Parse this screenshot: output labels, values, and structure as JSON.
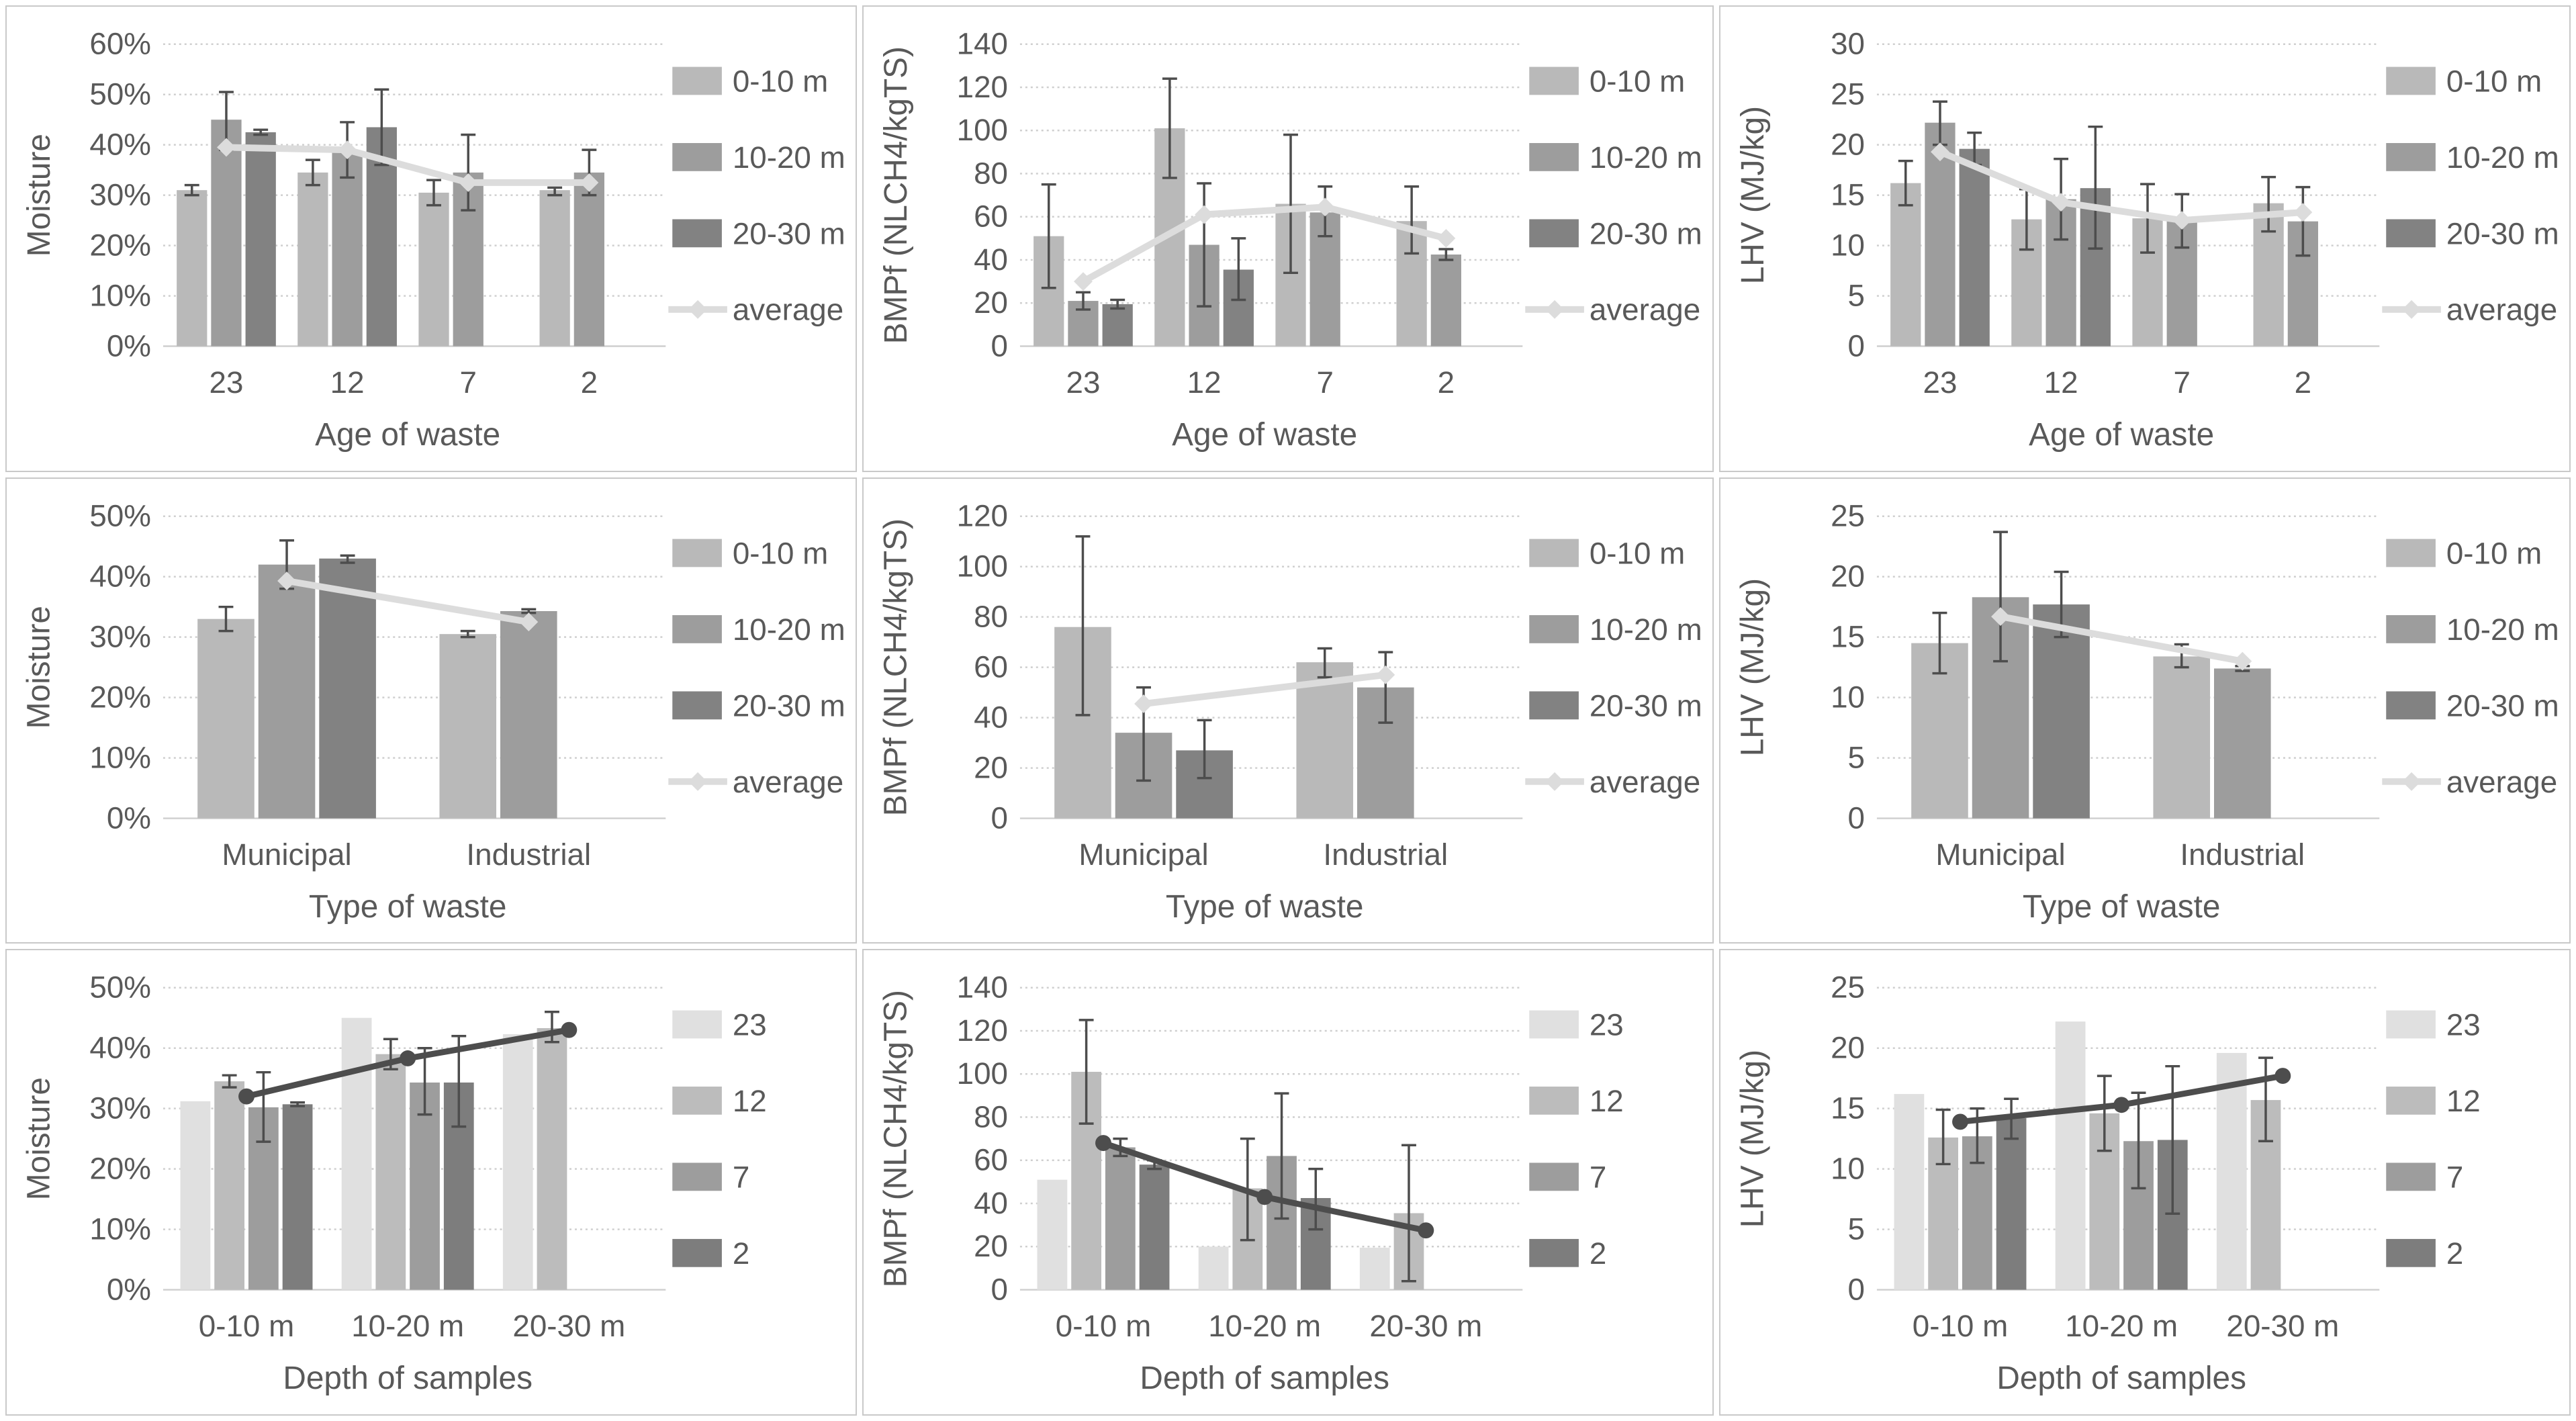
{
  "page": {
    "background": "#ffffff",
    "panel_border": "#c9c9c9",
    "text_color": "#595959",
    "gridline_color": "#cfcfcf",
    "error_bar_color": "#4d4d4d"
  },
  "chart_data": [
    {
      "name": "moisture-by-age",
      "type": "bar",
      "title": "",
      "ylabel": "Moisture",
      "xlabel": "Age of waste",
      "y_min": 0,
      "y_max": 60,
      "y_step": 10,
      "y_suffix": "%",
      "grid": true,
      "legend_position": "right",
      "categories": [
        "23",
        "12",
        "7",
        "2"
      ],
      "series": [
        {
          "name": "0-10 m",
          "color": "#b9b9b9",
          "values": [
            31,
            34.5,
            30.5,
            31
          ],
          "errors": [
            [
              30,
              32
            ],
            [
              32,
              37
            ],
            [
              28,
              33
            ],
            [
              30,
              31.5
            ]
          ]
        },
        {
          "name": "10-20 m",
          "color": "#9d9d9d",
          "values": [
            45,
            38.5,
            34.5,
            34.5
          ],
          "errors": [
            [
              39,
              50.5
            ],
            [
              33.5,
              44.5
            ],
            [
              27,
              42
            ],
            [
              30,
              39
            ]
          ]
        },
        {
          "name": "20-30 m",
          "color": "#828282",
          "values": [
            42.5,
            43.5,
            null,
            null
          ],
          "errors": [
            [
              42,
              43
            ],
            [
              36,
              51
            ],
            null,
            null
          ]
        }
      ],
      "line": {
        "name": "average",
        "color": "#dcdcdc",
        "marker": "diamond",
        "width": 10,
        "show_in_legend": true,
        "values": [
          39.5,
          39,
          32.5,
          32.5
        ]
      }
    },
    {
      "name": "bmpf-by-age",
      "type": "bar",
      "title": "",
      "ylabel": "BMPf (NLCH4/kgTS)",
      "xlabel": "Age of waste",
      "y_min": 0,
      "y_max": 140,
      "y_step": 20,
      "y_suffix": "",
      "grid": true,
      "legend_position": "right",
      "categories": [
        "23",
        "12",
        "7",
        "2"
      ],
      "series": [
        {
          "name": "0-10 m",
          "color": "#b9b9b9",
          "values": [
            51,
            101,
            66,
            58
          ],
          "errors": [
            [
              27,
              75
            ],
            [
              78,
              124
            ],
            [
              34,
              98
            ],
            [
              43,
              74
            ]
          ]
        },
        {
          "name": "10-20 m",
          "color": "#9d9d9d",
          "values": [
            21,
            47,
            62,
            42.5
          ],
          "errors": [
            [
              17,
              25
            ],
            [
              18.5,
              75.5
            ],
            [
              51,
              74
            ],
            [
              40,
              45
            ]
          ]
        },
        {
          "name": "20-30 m",
          "color": "#828282",
          "values": [
            19.5,
            35.5,
            null,
            null
          ],
          "errors": [
            [
              17.5,
              21.5
            ],
            [
              21.5,
              50
            ],
            null,
            null
          ]
        }
      ],
      "line": {
        "name": "average",
        "color": "#dcdcdc",
        "marker": "diamond",
        "width": 10,
        "show_in_legend": true,
        "values": [
          30,
          61,
          64.5,
          50
        ]
      }
    },
    {
      "name": "lhv-by-age",
      "type": "bar",
      "title": "",
      "ylabel": "LHV (MJ/kg)",
      "xlabel": "Age of waste",
      "y_min": 0,
      "y_max": 30,
      "y_step": 5,
      "y_suffix": "",
      "grid": true,
      "legend_position": "right",
      "categories": [
        "23",
        "12",
        "7",
        "2"
      ],
      "series": [
        {
          "name": "0-10 m",
          "color": "#b9b9b9",
          "values": [
            16.2,
            12.6,
            12.7,
            14.2
          ],
          "errors": [
            [
              14,
              18.4
            ],
            [
              9.6,
              15.6
            ],
            [
              9.3,
              16.1
            ],
            [
              11.4,
              16.8
            ]
          ]
        },
        {
          "name": "10-20 m",
          "color": "#9d9d9d",
          "values": [
            22.2,
            14.6,
            12.5,
            12.4
          ],
          "errors": [
            [
              20,
              24.3
            ],
            [
              10.6,
              18.6
            ],
            [
              9.8,
              15.1
            ],
            [
              9,
              15.8
            ]
          ]
        },
        {
          "name": "20-30 m",
          "color": "#828282",
          "values": [
            19.6,
            15.7,
            null,
            null
          ],
          "errors": [
            [
              18,
              21.2
            ],
            [
              9.7,
              21.8
            ],
            null,
            null
          ]
        }
      ],
      "line": {
        "name": "average",
        "color": "#dcdcdc",
        "marker": "diamond",
        "width": 10,
        "show_in_legend": true,
        "values": [
          19.3,
          14.3,
          12.5,
          13.3
        ]
      }
    },
    {
      "name": "moisture-by-type",
      "type": "bar",
      "title": "",
      "ylabel": "Moisture",
      "xlabel": "Type of waste",
      "y_min": 0,
      "y_max": 50,
      "y_step": 10,
      "y_suffix": "%",
      "grid": true,
      "legend_position": "right",
      "categories": [
        "Municipal",
        "Industrial"
      ],
      "series": [
        {
          "name": "0-10 m",
          "color": "#b9b9b9",
          "values": [
            33,
            30.5
          ],
          "errors": [
            [
              31,
              35
            ],
            [
              30,
              31
            ]
          ]
        },
        {
          "name": "10-20 m",
          "color": "#9d9d9d",
          "values": [
            42,
            34.3
          ],
          "errors": [
            [
              38,
              46
            ],
            [
              34,
              34.6
            ]
          ]
        },
        {
          "name": "20-30 m",
          "color": "#828282",
          "values": [
            43,
            null
          ],
          "errors": [
            [
              42.3,
              43.5
            ],
            null
          ]
        }
      ],
      "line": {
        "name": "average",
        "color": "#dcdcdc",
        "marker": "diamond",
        "width": 10,
        "show_in_legend": true,
        "values": [
          39.3,
          32.5
        ]
      }
    },
    {
      "name": "bmpf-by-type",
      "type": "bar",
      "title": "",
      "ylabel": "BMPf (NLCH4/kgTS)",
      "xlabel": "Type of waste",
      "y_min": 0,
      "y_max": 120,
      "y_step": 20,
      "y_suffix": "",
      "grid": true,
      "legend_position": "right",
      "categories": [
        "Municipal",
        "Industrial"
      ],
      "series": [
        {
          "name": "0-10 m",
          "color": "#b9b9b9",
          "values": [
            76,
            62
          ],
          "errors": [
            [
              41,
              112
            ],
            [
              56,
              67.5
            ]
          ]
        },
        {
          "name": "10-20 m",
          "color": "#9d9d9d",
          "values": [
            34,
            52
          ],
          "errors": [
            [
              15,
              52
            ],
            [
              38,
              66
            ]
          ]
        },
        {
          "name": "20-30 m",
          "color": "#828282",
          "values": [
            27,
            null
          ],
          "errors": [
            [
              16,
              39
            ],
            null
          ]
        }
      ],
      "line": {
        "name": "average",
        "color": "#dcdcdc",
        "marker": "diamond",
        "width": 10,
        "show_in_legend": true,
        "values": [
          45.5,
          57
        ]
      }
    },
    {
      "name": "lhv-by-type",
      "type": "bar",
      "title": "",
      "ylabel": "LHV (MJ/kg)",
      "xlabel": "Type of waste",
      "y_min": 0,
      "y_max": 25,
      "y_step": 5,
      "y_suffix": "",
      "grid": true,
      "legend_position": "right",
      "categories": [
        "Municipal",
        "Industrial"
      ],
      "series": [
        {
          "name": "0-10 m",
          "color": "#b9b9b9",
          "values": [
            14.5,
            13.4
          ],
          "errors": [
            [
              12,
              17
            ],
            [
              12.5,
              14.4
            ]
          ]
        },
        {
          "name": "10-20 m",
          "color": "#9d9d9d",
          "values": [
            18.3,
            12.4
          ],
          "errors": [
            [
              13,
              23.7
            ],
            [
              12.2,
              12.6
            ]
          ]
        },
        {
          "name": "20-30 m",
          "color": "#828282",
          "values": [
            17.7,
            null
          ],
          "errors": [
            [
              15,
              20.4
            ],
            null
          ]
        }
      ],
      "line": {
        "name": "average",
        "color": "#dcdcdc",
        "marker": "diamond",
        "width": 10,
        "show_in_legend": true,
        "values": [
          16.7,
          13
        ]
      }
    },
    {
      "name": "moisture-by-depth",
      "type": "bar",
      "title": "",
      "ylabel": "Moisture",
      "xlabel": "Depth of samples",
      "y_min": 0,
      "y_max": 50,
      "y_step": 10,
      "y_suffix": "%",
      "grid": true,
      "legend_position": "right",
      "categories": [
        "0-10 m",
        "10-20 m",
        "20-30 m"
      ],
      "series": [
        {
          "name": "23",
          "color": "#e0e0e0",
          "values": [
            31.2,
            45,
            42.3
          ],
          "errors": [
            null,
            null,
            null
          ]
        },
        {
          "name": "12",
          "color": "#bcbcbc",
          "values": [
            34.5,
            39,
            43.3
          ],
          "errors": [
            [
              33.5,
              35.5
            ],
            [
              36.5,
              41.5
            ],
            [
              41,
              46
            ]
          ]
        },
        {
          "name": "7",
          "color": "#9d9d9d",
          "values": [
            30.2,
            34.3,
            null
          ],
          "errors": [
            [
              24.5,
              36
            ],
            [
              29,
              40
            ],
            null
          ]
        },
        {
          "name": "2",
          "color": "#7d7d7d",
          "values": [
            30.7,
            34.3,
            null
          ],
          "errors": [
            [
              30.4,
              31
            ],
            [
              27,
              42
            ],
            null
          ]
        }
      ],
      "line": {
        "name": "average",
        "color": "#4d4d4d",
        "marker": "circle",
        "width": 9,
        "show_in_legend": false,
        "values": [
          32,
          38.3,
          43
        ]
      }
    },
    {
      "name": "bmpf-by-depth",
      "type": "bar",
      "title": "",
      "ylabel": "BMPf (NLCH4/kgTS)",
      "xlabel": "Depth of samples",
      "y_min": 0,
      "y_max": 140,
      "y_step": 20,
      "y_suffix": "",
      "grid": true,
      "legend_position": "right",
      "categories": [
        "0-10 m",
        "10-20 m",
        "20-30 m"
      ],
      "series": [
        {
          "name": "23",
          "color": "#e0e0e0",
          "values": [
            51,
            20,
            19.5
          ],
          "errors": [
            null,
            null,
            null
          ]
        },
        {
          "name": "12",
          "color": "#bcbcbc",
          "values": [
            101,
            47,
            35.5
          ],
          "errors": [
            [
              77,
              125
            ],
            [
              23,
              70
            ],
            [
              4,
              67
            ]
          ]
        },
        {
          "name": "7",
          "color": "#9d9d9d",
          "values": [
            66,
            62,
            null
          ],
          "errors": [
            [
              62,
              70
            ],
            [
              33,
              91
            ],
            null
          ]
        },
        {
          "name": "2",
          "color": "#7d7d7d",
          "values": [
            58,
            42.5,
            null
          ],
          "errors": [
            [
              56,
              60
            ],
            [
              28,
              56
            ],
            null
          ]
        }
      ],
      "line": {
        "name": "average",
        "color": "#4d4d4d",
        "marker": "circle",
        "width": 9,
        "show_in_legend": false,
        "values": [
          68,
          43,
          27.5
        ]
      }
    },
    {
      "name": "lhv-by-depth",
      "type": "bar",
      "title": "",
      "ylabel": "LHV (MJ/kg)",
      "xlabel": "Depth of samples",
      "y_min": 0,
      "y_max": 25,
      "y_step": 5,
      "y_suffix": "",
      "grid": true,
      "legend_position": "right",
      "categories": [
        "0-10 m",
        "10-20 m",
        "20-30 m"
      ],
      "series": [
        {
          "name": "23",
          "color": "#e0e0e0",
          "values": [
            16.2,
            22.2,
            19.6
          ],
          "errors": [
            null,
            null,
            null
          ]
        },
        {
          "name": "12",
          "color": "#bcbcbc",
          "values": [
            12.6,
            14.6,
            15.7
          ],
          "errors": [
            [
              10.4,
              14.9
            ],
            [
              11.5,
              17.7
            ],
            [
              12.3,
              19.2
            ]
          ]
        },
        {
          "name": "7",
          "color": "#9d9d9d",
          "values": [
            12.7,
            12.3,
            null
          ],
          "errors": [
            [
              10.5,
              15
            ],
            [
              8.4,
              16.3
            ],
            null
          ]
        },
        {
          "name": "2",
          "color": "#7d7d7d",
          "values": [
            14.2,
            12.4,
            null
          ],
          "errors": [
            [
              12.5,
              15.8
            ],
            [
              6.3,
              18.5
            ],
            null
          ]
        }
      ],
      "line": {
        "name": "average",
        "color": "#4d4d4d",
        "marker": "circle",
        "width": 9,
        "show_in_legend": false,
        "values": [
          13.9,
          15.3,
          17.7
        ]
      }
    }
  ]
}
